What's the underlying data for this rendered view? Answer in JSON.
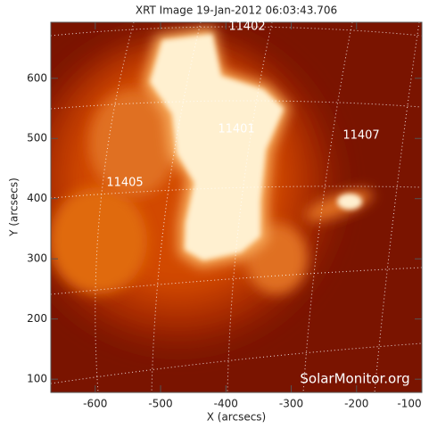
{
  "chart_data": {
    "type": "image",
    "title": "XRT Image 19-Jan-2012 06:03:43.706",
    "xlabel": "X (arcsecs)",
    "ylabel": "Y (arcsecs)",
    "xlim": [
      -668,
      -100
    ],
    "ylim": [
      78,
      693
    ],
    "xticks": [
      -600,
      -500,
      -400,
      -300,
      -200,
      -100
    ],
    "yticks": [
      100,
      200,
      300,
      400,
      500,
      600
    ],
    "annotations": [
      "11402",
      "11401",
      "11407",
      "11405"
    ],
    "watermark": "SolarMonitor.org"
  }
}
